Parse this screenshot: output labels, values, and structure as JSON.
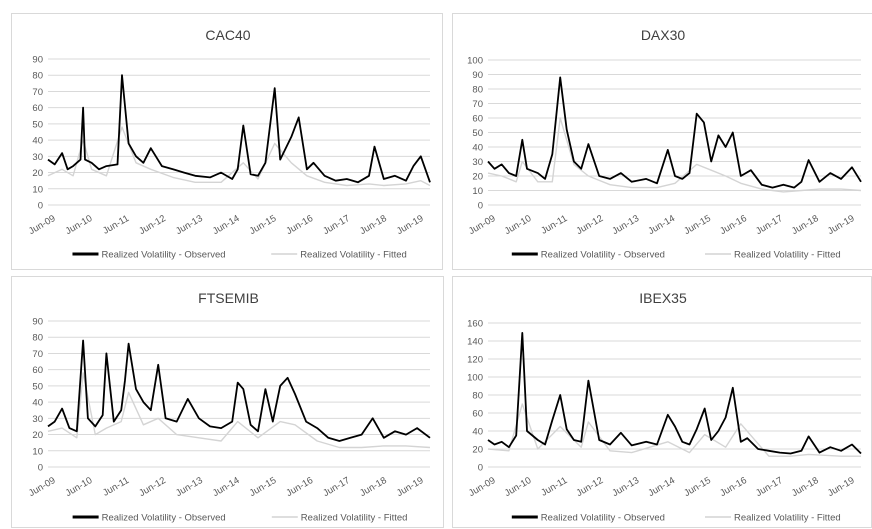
{
  "chart_data": [
    {
      "type": "line",
      "title": "CAC40",
      "ylim": [
        0,
        90
      ],
      "yticks": [
        0,
        10,
        20,
        30,
        40,
        50,
        60,
        70,
        80,
        90
      ],
      "xticks": [
        "Jun-09",
        "Jun-10",
        "Jun-11",
        "Jun-12",
        "Jun-13",
        "Jun-14",
        "Jun-15",
        "Jun-16",
        "Jun-17",
        "Jun-18",
        "Jun-19"
      ],
      "xrange": [
        2009.42,
        2019.75
      ],
      "grid": true,
      "legend_position": "bottom",
      "series": [
        {
          "name": "Realized Volatility - Observed",
          "color": "#000000",
          "x": [
            2009.42,
            2009.6,
            2009.8,
            2009.95,
            2010.1,
            2010.3,
            2010.37,
            2010.42,
            2010.6,
            2010.8,
            2011.0,
            2011.3,
            2011.42,
            2011.6,
            2011.8,
            2012.0,
            2012.2,
            2012.5,
            2012.8,
            2013.1,
            2013.4,
            2013.8,
            2014.1,
            2014.4,
            2014.55,
            2014.7,
            2014.9,
            2015.1,
            2015.3,
            2015.55,
            2015.7,
            2016.0,
            2016.2,
            2016.42,
            2016.6,
            2016.9,
            2017.2,
            2017.5,
            2017.8,
            2018.1,
            2018.25,
            2018.5,
            2018.8,
            2019.1,
            2019.3,
            2019.5,
            2019.75
          ],
          "values": [
            28,
            25,
            32,
            22,
            24,
            28,
            60,
            28,
            26,
            22,
            24,
            25,
            80,
            38,
            30,
            26,
            35,
            24,
            22,
            20,
            18,
            17,
            20,
            16,
            22,
            49,
            19,
            18,
            26,
            72,
            28,
            42,
            54,
            22,
            26,
            18,
            15,
            16,
            14,
            18,
            36,
            16,
            18,
            15,
            24,
            30,
            14
          ]
        },
        {
          "name": "Realized Volatility - Fitted",
          "color": "#d4d4d4",
          "x": [
            2009.42,
            2009.8,
            2010.1,
            2010.37,
            2010.6,
            2011.0,
            2011.42,
            2011.8,
            2012.2,
            2012.8,
            2013.4,
            2014.1,
            2014.7,
            2015.1,
            2015.55,
            2016.0,
            2016.42,
            2016.9,
            2017.5,
            2018.1,
            2018.5,
            2019.1,
            2019.5,
            2019.75
          ],
          "values": [
            18,
            22,
            18,
            40,
            22,
            18,
            48,
            26,
            22,
            17,
            14,
            14,
            26,
            16,
            38,
            26,
            18,
            14,
            12,
            13,
            12,
            13,
            15,
            12
          ]
        }
      ]
    },
    {
      "type": "line",
      "title": "DAX30",
      "ylim": [
        0,
        100
      ],
      "yticks": [
        0,
        10,
        20,
        30,
        40,
        50,
        60,
        70,
        80,
        90,
        100
      ],
      "xticks": [
        "Jun-09",
        "Jun-10",
        "Jun-11",
        "Jun-12",
        "Jun-13",
        "Jun-14",
        "Jun-15",
        "Jun-16",
        "Jun-17",
        "Jun-18",
        "Jun-19"
      ],
      "xrange": [
        2009.42,
        2019.75
      ],
      "grid": true,
      "legend_position": "bottom",
      "series": [
        {
          "name": "Realized Volatility - Observed",
          "color": "#000000",
          "x": [
            2009.42,
            2009.6,
            2009.8,
            2010.0,
            2010.2,
            2010.37,
            2010.5,
            2010.8,
            2011.0,
            2011.2,
            2011.42,
            2011.6,
            2011.8,
            2012.0,
            2012.2,
            2012.5,
            2012.8,
            2013.1,
            2013.4,
            2013.8,
            2014.1,
            2014.4,
            2014.6,
            2014.8,
            2015.0,
            2015.2,
            2015.4,
            2015.6,
            2015.8,
            2016.0,
            2016.2,
            2016.42,
            2016.7,
            2017.0,
            2017.3,
            2017.6,
            2017.9,
            2018.1,
            2018.3,
            2018.6,
            2018.9,
            2019.2,
            2019.5,
            2019.75
          ],
          "values": [
            30,
            25,
            28,
            22,
            20,
            45,
            25,
            22,
            18,
            35,
            88,
            52,
            30,
            25,
            42,
            20,
            18,
            22,
            16,
            18,
            15,
            38,
            20,
            18,
            22,
            63,
            57,
            30,
            48,
            40,
            50,
            20,
            24,
            14,
            12,
            14,
            12,
            16,
            31,
            16,
            22,
            18,
            26,
            16
          ]
        },
        {
          "name": "Realized Volatility - Fitted",
          "color": "#d4d4d4",
          "x": [
            2009.42,
            2009.8,
            2010.2,
            2010.37,
            2010.8,
            2011.2,
            2011.42,
            2011.8,
            2012.2,
            2012.8,
            2013.4,
            2014.1,
            2014.6,
            2015.2,
            2015.6,
            2016.0,
            2016.42,
            2017.0,
            2017.6,
            2018.1,
            2018.6,
            2019.2,
            2019.75
          ],
          "values": [
            22,
            20,
            16,
            30,
            16,
            16,
            60,
            28,
            20,
            14,
            12,
            12,
            15,
            28,
            24,
            20,
            15,
            11,
            9,
            10,
            11,
            11,
            10
          ]
        }
      ]
    },
    {
      "type": "line",
      "title": "FTSEMIB",
      "ylim": [
        0,
        90
      ],
      "yticks": [
        0,
        10,
        20,
        30,
        40,
        50,
        60,
        70,
        80,
        90
      ],
      "xticks": [
        "Jun-09",
        "Jun-10",
        "Jun-11",
        "Jun-12",
        "Jun-13",
        "Jun-14",
        "Jun-15",
        "Jun-16",
        "Jun-17",
        "Jun-18",
        "Jun-19"
      ],
      "xrange": [
        2009.42,
        2019.75
      ],
      "grid": true,
      "legend_position": "bottom",
      "series": [
        {
          "name": "Realized Volatility - Observed",
          "color": "#000000",
          "x": [
            2009.42,
            2009.6,
            2009.8,
            2010.0,
            2010.2,
            2010.37,
            2010.5,
            2010.7,
            2010.9,
            2011.0,
            2011.2,
            2011.4,
            2011.5,
            2011.6,
            2011.8,
            2012.0,
            2012.2,
            2012.4,
            2012.6,
            2012.9,
            2013.2,
            2013.5,
            2013.8,
            2014.1,
            2014.4,
            2014.55,
            2014.7,
            2014.9,
            2015.1,
            2015.3,
            2015.5,
            2015.7,
            2015.9,
            2016.1,
            2016.4,
            2016.7,
            2017.0,
            2017.3,
            2017.6,
            2017.9,
            2018.2,
            2018.5,
            2018.8,
            2019.1,
            2019.4,
            2019.75
          ],
          "values": [
            25,
            28,
            36,
            24,
            22,
            78,
            30,
            25,
            32,
            70,
            28,
            35,
            53,
            76,
            48,
            40,
            35,
            63,
            30,
            28,
            42,
            30,
            25,
            24,
            28,
            52,
            48,
            26,
            22,
            48,
            28,
            50,
            55,
            45,
            28,
            24,
            18,
            16,
            18,
            20,
            30,
            18,
            22,
            20,
            24,
            18
          ]
        },
        {
          "name": "Realized Volatility - Fitted",
          "color": "#d4d4d4",
          "x": [
            2009.42,
            2009.8,
            2010.2,
            2010.37,
            2010.7,
            2011.0,
            2011.4,
            2011.6,
            2012.0,
            2012.4,
            2012.9,
            2013.5,
            2014.1,
            2014.55,
            2015.1,
            2015.7,
            2016.1,
            2016.7,
            2017.3,
            2017.9,
            2018.5,
            2019.1,
            2019.75
          ],
          "values": [
            22,
            24,
            18,
            58,
            20,
            24,
            28,
            46,
            26,
            30,
            20,
            18,
            16,
            28,
            18,
            28,
            26,
            16,
            12,
            12,
            13,
            13,
            12
          ]
        }
      ]
    },
    {
      "type": "line",
      "title": "IBEX35",
      "ylim": [
        0,
        160
      ],
      "yticks": [
        0,
        20,
        40,
        60,
        80,
        100,
        120,
        140,
        160
      ],
      "xticks": [
        "Jun-09",
        "Jun-10",
        "Jun-11",
        "Jun-12",
        "Jun-13",
        "Jun-14",
        "Jun-15",
        "Jun-16",
        "Jun-17",
        "Jun-18",
        "Jun-19"
      ],
      "xrange": [
        2009.42,
        2019.75
      ],
      "grid": true,
      "legend_position": "bottom",
      "series": [
        {
          "name": "Realized Volatility - Observed",
          "color": "#000000",
          "x": [
            2009.42,
            2009.6,
            2009.8,
            2010.0,
            2010.2,
            2010.37,
            2010.5,
            2010.8,
            2011.0,
            2011.2,
            2011.42,
            2011.6,
            2011.8,
            2012.0,
            2012.2,
            2012.5,
            2012.8,
            2013.1,
            2013.4,
            2013.8,
            2014.1,
            2014.4,
            2014.6,
            2014.8,
            2015.0,
            2015.2,
            2015.42,
            2015.6,
            2015.8,
            2016.0,
            2016.2,
            2016.42,
            2016.6,
            2016.9,
            2017.2,
            2017.5,
            2017.8,
            2018.1,
            2018.3,
            2018.6,
            2018.9,
            2019.2,
            2019.5,
            2019.75
          ],
          "values": [
            30,
            25,
            28,
            22,
            35,
            149,
            40,
            30,
            25,
            52,
            80,
            42,
            30,
            28,
            96,
            30,
            25,
            38,
            24,
            28,
            25,
            58,
            45,
            28,
            25,
            42,
            65,
            30,
            40,
            55,
            88,
            28,
            32,
            20,
            18,
            16,
            15,
            18,
            34,
            16,
            22,
            18,
            25,
            15
          ]
        },
        {
          "name": "Realized Volatility - Fitted",
          "color": "#d4d4d4",
          "x": [
            2009.42,
            2010.0,
            2010.37,
            2010.8,
            2011.42,
            2012.0,
            2012.2,
            2012.8,
            2013.4,
            2014.4,
            2015.0,
            2015.42,
            2016.0,
            2016.42,
            2017.2,
            2017.8,
            2018.3,
            2019.2,
            2019.75
          ],
          "values": [
            20,
            18,
            70,
            20,
            45,
            22,
            50,
            18,
            16,
            28,
            16,
            36,
            22,
            48,
            12,
            12,
            14,
            12,
            12
          ]
        }
      ]
    }
  ]
}
